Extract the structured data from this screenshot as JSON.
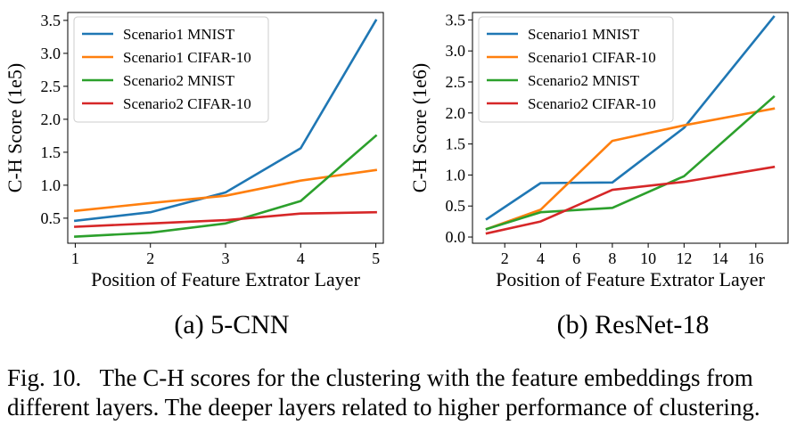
{
  "chart_data": [
    {
      "id": "a",
      "type": "line",
      "title": "",
      "xlabel": "Position of Feature Extrator Layer",
      "ylabel": "C-H Score (1e5)",
      "xlim": [
        0.9,
        5.1
      ],
      "ylim": [
        0.12,
        3.62
      ],
      "xticks": [
        1,
        2,
        3,
        4,
        5
      ],
      "xtick_labels": [
        "1",
        "2",
        "3",
        "4",
        "5"
      ],
      "yticks": [
        0.5,
        1.0,
        1.5,
        2.0,
        2.5,
        3.0,
        3.5
      ],
      "ytick_labels": [
        "0.5",
        "1.0",
        "1.5",
        "2.0",
        "2.5",
        "3.0",
        "3.5"
      ],
      "grid": false,
      "legend_position": "top-left",
      "series": [
        {
          "name": "Scenario1 MNIST",
          "color": "#1f77b4",
          "x": [
            1,
            2,
            3,
            4,
            5
          ],
          "values": [
            0.46,
            0.59,
            0.89,
            1.56,
            3.5
          ]
        },
        {
          "name": "Scenario1 CIFAR-10",
          "color": "#ff7f0e",
          "x": [
            1,
            2,
            3,
            4,
            5
          ],
          "values": [
            0.61,
            0.73,
            0.84,
            1.07,
            1.23
          ]
        },
        {
          "name": "Scenario2 MNIST",
          "color": "#2ca02c",
          "x": [
            1,
            2,
            3,
            4,
            5
          ],
          "values": [
            0.22,
            0.28,
            0.42,
            0.76,
            1.75
          ]
        },
        {
          "name": "Scenario2 CIFAR-10",
          "color": "#d62728",
          "x": [
            1,
            2,
            3,
            4,
            5
          ],
          "values": [
            0.37,
            0.42,
            0.47,
            0.57,
            0.59
          ]
        }
      ]
    },
    {
      "id": "b",
      "type": "line",
      "title": "",
      "xlabel": "Position of Feature Extrator Layer",
      "ylabel": "C-H Score (1e6)",
      "xlim": [
        0.2,
        17.8
      ],
      "ylim": [
        -0.1,
        3.62
      ],
      "xticks": [
        2,
        4,
        6,
        8,
        10,
        12,
        14,
        16
      ],
      "xtick_labels": [
        "2",
        "4",
        "6",
        "8",
        "10",
        "12",
        "14",
        "16"
      ],
      "yticks": [
        0.0,
        0.5,
        1.0,
        1.5,
        2.0,
        2.5,
        3.0,
        3.5
      ],
      "ytick_labels": [
        "0.0",
        "0.5",
        "1.0",
        "1.5",
        "2.0",
        "2.5",
        "3.0",
        "3.5"
      ],
      "grid": false,
      "legend_position": "top-left",
      "series": [
        {
          "name": "Scenario1 MNIST",
          "color": "#1f77b4",
          "x": [
            1,
            4,
            8,
            12,
            17
          ],
          "values": [
            0.29,
            0.87,
            0.88,
            1.76,
            3.55
          ]
        },
        {
          "name": "Scenario1 CIFAR-10",
          "color": "#ff7f0e",
          "x": [
            1,
            4,
            8,
            12,
            17
          ],
          "values": [
            0.13,
            0.44,
            1.55,
            1.8,
            2.07
          ]
        },
        {
          "name": "Scenario2 MNIST",
          "color": "#2ca02c",
          "x": [
            1,
            4,
            8,
            12,
            17
          ],
          "values": [
            0.13,
            0.4,
            0.47,
            0.98,
            2.26
          ]
        },
        {
          "name": "Scenario2 CIFAR-10",
          "color": "#d62728",
          "x": [
            1,
            4,
            8,
            12,
            17
          ],
          "values": [
            0.06,
            0.25,
            0.76,
            0.89,
            1.13
          ]
        }
      ]
    }
  ],
  "captions": {
    "panel_a": "(a) 5-CNN",
    "panel_b": "(b) ResNet-18",
    "figure_line1": "Fig. 10.   The C-H scores for the clustering with the feature embeddings from",
    "figure_line2": "different layers. The deeper layers related to higher performance of clustering."
  }
}
